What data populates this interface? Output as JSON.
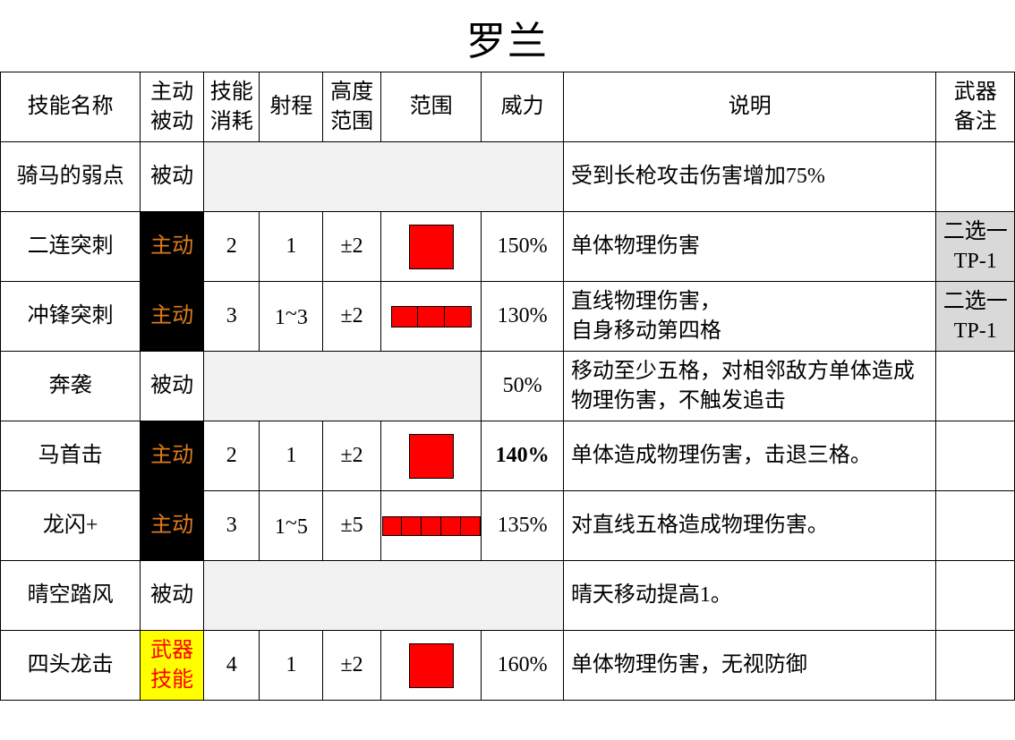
{
  "title": "罗兰",
  "headers": {
    "name": "技能名称",
    "type": "主动\n被动",
    "cost": "技能\n消耗",
    "range": "射程",
    "height": "高度\n范围",
    "area": "范围",
    "power": "威力",
    "desc": "说明",
    "note": "武器\n备注"
  },
  "type_labels": {
    "active": "主动",
    "passive": "被动",
    "weapon": "武器\n技能"
  },
  "rows": [
    {
      "name": "骑马的弱点",
      "type": "passive",
      "cost": "",
      "range": "",
      "height": "",
      "area_shape": "none",
      "power": "",
      "desc": "受到长枪攻击伤害增加75%",
      "note": "",
      "grey_span": 5
    },
    {
      "name": "二连突刺",
      "type": "active",
      "cost": "2",
      "range": "1",
      "height": "±2",
      "area_shape": "single",
      "power": "150%",
      "desc": "单体物理伤害",
      "note": "二选一\nTP-1",
      "note_grey": true
    },
    {
      "name": "冲锋突刺",
      "type": "active",
      "cost": "3",
      "range": "1~3",
      "height": "±2",
      "area_shape": "row3",
      "power": "130%",
      "desc": "直线物理伤害，\n自身移动第四格",
      "note": "二选一\nTP-1",
      "note_grey": true
    },
    {
      "name": "奔袭",
      "type": "passive",
      "cost": "",
      "range": "",
      "height": "",
      "area_shape": "none",
      "power": "50%",
      "desc": "移动至少五格，对相邻敌方单体造成物理伤害，不触发追击",
      "note": "",
      "grey_span": 4
    },
    {
      "name": "马首击",
      "type": "active",
      "cost": "2",
      "range": "1",
      "height": "±2",
      "area_shape": "single",
      "power": "140%",
      "power_bold": true,
      "desc": "单体造成物理伤害，击退三格。",
      "note": ""
    },
    {
      "name": "龙闪+",
      "type": "active",
      "cost": "3",
      "range": "1~5",
      "height": "±5",
      "area_shape": "row5",
      "power": "135%",
      "desc": "对直线五格造成物理伤害。",
      "note": ""
    },
    {
      "name": "晴空踏风",
      "type": "passive",
      "cost": "",
      "range": "",
      "height": "",
      "area_shape": "none",
      "power": "",
      "desc": "晴天移动提高1。",
      "note": "",
      "grey_span": 5
    },
    {
      "name": "四头龙击",
      "type": "weapon",
      "cost": "4",
      "range": "1",
      "height": "±2",
      "area_shape": "single",
      "power": "160%",
      "desc": "单体物理伤害，无视防御",
      "note": ""
    }
  ]
}
